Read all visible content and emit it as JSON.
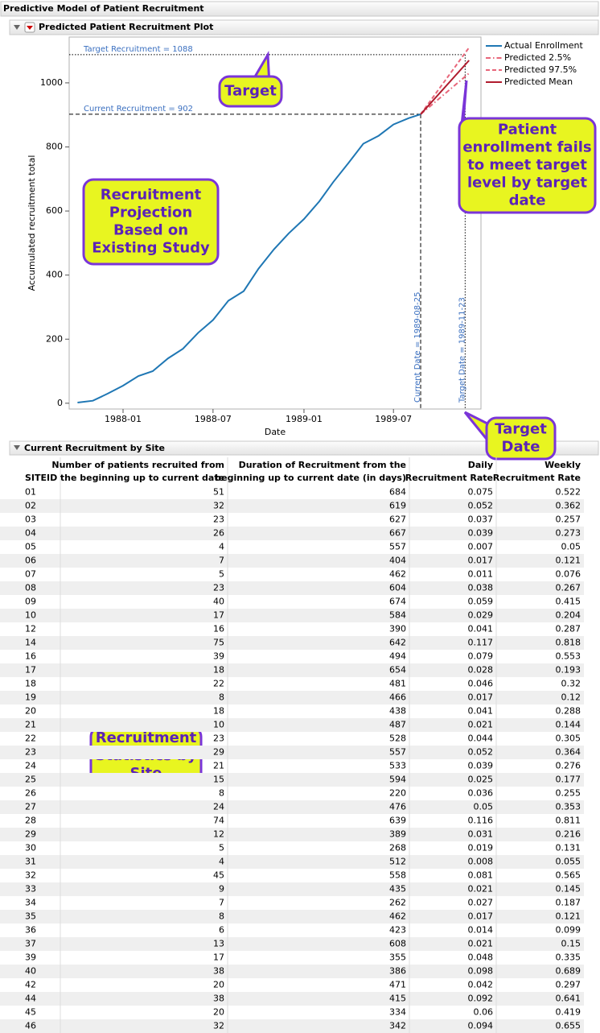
{
  "report": {
    "title": "Predictive Model of Patient Recruitment",
    "plot_title": "Predicted Patient Recruitment Plot",
    "table_title": "Current Recruitment by Site"
  },
  "chart_data": {
    "type": "line",
    "y_label": "Accumulated recruitment total",
    "x_label": "Date",
    "xlim": [
      "1987-09-14",
      "1989-12-25"
    ],
    "xticks": [
      "1988-01",
      "1988-07",
      "1989-01",
      "1989-07"
    ],
    "ylim": [
      -18,
      1143
    ],
    "yticks": [
      0,
      200,
      400,
      600,
      800,
      1000
    ],
    "series": [
      {
        "name": "Actual Enrollment",
        "color": "#1f77b4",
        "style": "solid",
        "x": [
          "1987-10",
          "1987-11",
          "1987-12",
          "1988-01",
          "1988-02",
          "1988-03",
          "1988-04",
          "1988-05",
          "1988-06",
          "1988-07",
          "1988-08",
          "1988-09",
          "1988-10",
          "1988-11",
          "1988-12",
          "1989-01",
          "1989-02",
          "1989-03",
          "1989-04",
          "1989-05",
          "1989-06",
          "1989-07",
          "1989-08",
          "1989-08-25"
        ],
        "values": [
          2,
          8,
          30,
          55,
          85,
          100,
          140,
          170,
          220,
          260,
          320,
          350,
          420,
          480,
          530,
          575,
          630,
          690,
          750,
          810,
          835,
          870,
          890,
          902
        ]
      },
      {
        "name": "Predicted 2.5%",
        "color": "#e8667a",
        "style": "dashdot",
        "x": [
          "1989-08-25",
          "1989-12"
        ],
        "values": [
          902,
          1030
        ]
      },
      {
        "name": "Predicted 97.5%",
        "color": "#e8667a",
        "style": "dashed",
        "x": [
          "1989-08-25",
          "1989-12"
        ],
        "values": [
          902,
          1110
        ]
      },
      {
        "name": "Predicted Mean",
        "color": "#b01c2e",
        "style": "solid",
        "x": [
          "1989-08-25",
          "1989-12"
        ],
        "values": [
          902,
          1070
        ]
      }
    ],
    "reference_lines": [
      {
        "axis": "y",
        "value": 1088,
        "label": "Target Recruitment = 1088",
        "style": "dotted"
      },
      {
        "axis": "y",
        "value": 902,
        "label": "Current Recruitment = 902",
        "style": "dashed"
      },
      {
        "axis": "x",
        "value": "1989-08-25",
        "label": "Current Date = 1989-08-25",
        "style": "dashed"
      },
      {
        "axis": "x",
        "value": "1989-11-23",
        "label": "Target Date = 1989-11-23",
        "style": "dotted"
      }
    ],
    "legend": "outside-right"
  },
  "callouts": [
    {
      "lines": [
        "Target"
      ]
    },
    {
      "lines": [
        "Recruitment",
        "Projection",
        "Based on",
        "Existing Study"
      ]
    },
    {
      "lines": [
        "Patient",
        "enrollment fails",
        "to meet target",
        "level by target",
        "date"
      ]
    },
    {
      "lines": [
        "Target",
        "Date"
      ]
    },
    {
      "lines": [
        "Recruitment",
        "Statistics by",
        "Site"
      ]
    }
  ],
  "table": {
    "columns": [
      [
        "SITEID"
      ],
      [
        "Number of patients recruited from",
        "the beginning up to current date"
      ],
      [
        "Duration of Recruitment from the",
        "beginning up to current date (in days)"
      ],
      [
        "Daily",
        "Recruitment Rate"
      ],
      [
        "Weekly",
        "Recruitment Rate"
      ]
    ],
    "rows": [
      [
        "01",
        51,
        684,
        0.075,
        0.522
      ],
      [
        "02",
        32,
        619,
        0.052,
        0.362
      ],
      [
        "03",
        23,
        627,
        0.037,
        0.257
      ],
      [
        "04",
        26,
        667,
        0.039,
        0.273
      ],
      [
        "05",
        4,
        557,
        0.007,
        0.05
      ],
      [
        "06",
        7,
        404,
        0.017,
        0.121
      ],
      [
        "07",
        5,
        462,
        0.011,
        0.076
      ],
      [
        "08",
        23,
        604,
        0.038,
        0.267
      ],
      [
        "09",
        40,
        674,
        0.059,
        0.415
      ],
      [
        "10",
        17,
        584,
        0.029,
        0.204
      ],
      [
        "12",
        16,
        390,
        0.041,
        0.287
      ],
      [
        "14",
        75,
        642,
        0.117,
        0.818
      ],
      [
        "16",
        39,
        494,
        0.079,
        0.553
      ],
      [
        "17",
        18,
        654,
        0.028,
        0.193
      ],
      [
        "18",
        22,
        481,
        0.046,
        0.32
      ],
      [
        "19",
        8,
        466,
        0.017,
        0.12
      ],
      [
        "20",
        18,
        438,
        0.041,
        0.288
      ],
      [
        "21",
        10,
        487,
        0.021,
        0.144
      ],
      [
        "22",
        23,
        528,
        0.044,
        0.305
      ],
      [
        "23",
        29,
        557,
        0.052,
        0.364
      ],
      [
        "24",
        21,
        533,
        0.039,
        0.276
      ],
      [
        "25",
        15,
        594,
        0.025,
        0.177
      ],
      [
        "26",
        8,
        220,
        0.036,
        0.255
      ],
      [
        "27",
        24,
        476,
        0.05,
        0.353
      ],
      [
        "28",
        74,
        639,
        0.116,
        0.811
      ],
      [
        "29",
        12,
        389,
        0.031,
        0.216
      ],
      [
        "30",
        5,
        268,
        0.019,
        0.131
      ],
      [
        "31",
        4,
        512,
        0.008,
        0.055
      ],
      [
        "32",
        45,
        558,
        0.081,
        0.565
      ],
      [
        "33",
        9,
        435,
        0.021,
        0.145
      ],
      [
        "34",
        7,
        262,
        0.027,
        0.187
      ],
      [
        "35",
        8,
        462,
        0.017,
        0.121
      ],
      [
        "36",
        6,
        423,
        0.014,
        0.099
      ],
      [
        "37",
        13,
        608,
        0.021,
        0.15
      ],
      [
        "39",
        17,
        355,
        0.048,
        0.335
      ],
      [
        "40",
        38,
        386,
        0.098,
        0.689
      ],
      [
        "42",
        20,
        471,
        0.042,
        0.297
      ],
      [
        "44",
        38,
        415,
        0.092,
        0.641
      ],
      [
        "45",
        20,
        334,
        0.06,
        0.419
      ],
      [
        "46",
        32,
        342,
        0.094,
        0.655
      ]
    ]
  }
}
